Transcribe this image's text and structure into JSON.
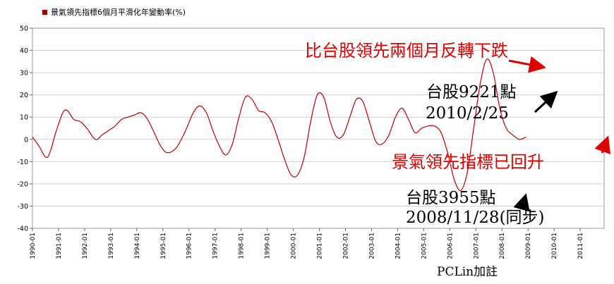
{
  "chart_data": {
    "type": "line",
    "title": "",
    "xlabel": "",
    "ylabel": "",
    "ylim": [
      -40,
      50
    ],
    "yticks": [
      -40,
      -30,
      -20,
      -10,
      0,
      10,
      20,
      30,
      40,
      50
    ],
    "xlim": [
      "1990-01",
      "2011-12"
    ],
    "xticks": [
      "1990-01",
      "1991-01",
      "1992-01",
      "1993-01",
      "1994-01",
      "1995-01",
      "1996-01",
      "1997-01",
      "1998-01",
      "1999-01",
      "2000-01",
      "2001-01",
      "2002-01",
      "2003-01",
      "2004-01",
      "2005-01",
      "2006-01",
      "2007-01",
      "2008-01",
      "2009-01",
      "2010-01",
      "2011-01"
    ],
    "grid": "horizontal",
    "legend_position": "top-left",
    "series": [
      {
        "name": "景氣領先指標6個月平滑化年變動率(%)",
        "color": "#c00000",
        "points": [
          [
            "1990-01",
            1
          ],
          [
            "1990-04",
            -3
          ],
          [
            "1990-07",
            -8
          ],
          [
            "1990-09",
            -6
          ],
          [
            "1990-12",
            4
          ],
          [
            "1991-03",
            12
          ],
          [
            "1991-05",
            13
          ],
          [
            "1991-08",
            9
          ],
          [
            "1991-11",
            8
          ],
          [
            "1992-02",
            5
          ],
          [
            "1992-06",
            0
          ],
          [
            "1992-09",
            2
          ],
          [
            "1992-12",
            4
          ],
          [
            "1993-03",
            6
          ],
          [
            "1993-06",
            9
          ],
          [
            "1993-09",
            10
          ],
          [
            "1993-12",
            11
          ],
          [
            "1994-03",
            12
          ],
          [
            "1994-06",
            9
          ],
          [
            "1994-09",
            3
          ],
          [
            "1994-12",
            -3
          ],
          [
            "1995-03",
            -6
          ],
          [
            "1995-07",
            -4
          ],
          [
            "1995-11",
            3
          ],
          [
            "1996-03",
            12
          ],
          [
            "1996-06",
            15
          ],
          [
            "1996-09",
            12
          ],
          [
            "1996-12",
            4
          ],
          [
            "1997-03",
            -3
          ],
          [
            "1997-06",
            -7
          ],
          [
            "1997-09",
            -2
          ],
          [
            "1997-12",
            10
          ],
          [
            "1998-03",
            19
          ],
          [
            "1998-06",
            18
          ],
          [
            "1998-09",
            13
          ],
          [
            "1998-12",
            12
          ],
          [
            "1999-03",
            8
          ],
          [
            "1999-06",
            0
          ],
          [
            "1999-09",
            -9
          ],
          [
            "1999-12",
            -16
          ],
          [
            "2000-03",
            -16
          ],
          [
            "2000-06",
            -8
          ],
          [
            "2000-09",
            8
          ],
          [
            "2000-12",
            20
          ],
          [
            "2001-03",
            19
          ],
          [
            "2001-06",
            8
          ],
          [
            "2001-09",
            1
          ],
          [
            "2001-12",
            2
          ],
          [
            "2002-03",
            10
          ],
          [
            "2002-06",
            18
          ],
          [
            "2002-09",
            17
          ],
          [
            "2002-12",
            8
          ],
          [
            "2003-03",
            -1
          ],
          [
            "2003-06",
            -2
          ],
          [
            "2003-09",
            2
          ],
          [
            "2003-12",
            10
          ],
          [
            "2004-03",
            14
          ],
          [
            "2004-06",
            9
          ],
          [
            "2004-09",
            3
          ],
          [
            "2004-12",
            5
          ],
          [
            "2005-03",
            6
          ],
          [
            "2005-06",
            6
          ],
          [
            "2005-09",
            3
          ],
          [
            "2005-12",
            -6
          ],
          [
            "2006-03",
            -18
          ],
          [
            "2006-06",
            -23
          ],
          [
            "2006-09",
            -15
          ],
          [
            "2006-12",
            5
          ],
          [
            "2007-03",
            25
          ],
          [
            "2007-06",
            36
          ],
          [
            "2007-09",
            30
          ],
          [
            "2007-12",
            14
          ],
          [
            "2008-03",
            5
          ],
          [
            "2008-06",
            2
          ],
          [
            "2008-09",
            0
          ],
          [
            "2008-12",
            1
          ]
        ]
      }
    ]
  },
  "annotations": {
    "title_red": "比台股領先兩個月反轉下跌",
    "peak_label_1": "台股9221點",
    "peak_label_2": "2010/2/25",
    "recover_red": "景氣領先指標已回升",
    "trough_label_1": "台股3955點",
    "trough_label_2": "2008/11/28(同步)",
    "credit": "PCLin加註"
  }
}
